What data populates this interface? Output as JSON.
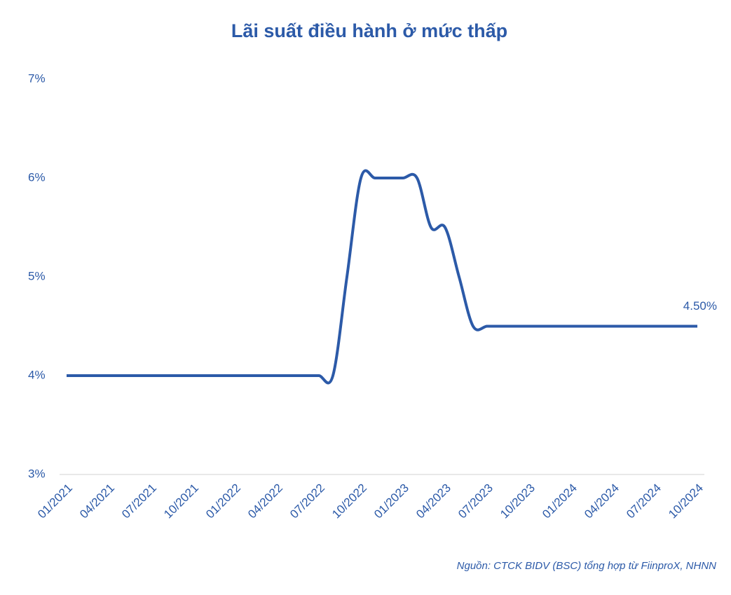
{
  "chart_data": {
    "type": "line",
    "title": "Lãi suất điều hành ở mức thấp",
    "source": "Nguồn: CTCK BIDV (BSC) tổng hợp từ FiinproX, NHNN",
    "categories": [
      "01/2021",
      null,
      null,
      "04/2021",
      null,
      null,
      "07/2021",
      null,
      null,
      "10/2021",
      null,
      null,
      "01/2022",
      null,
      null,
      "04/2022",
      null,
      null,
      "07/2022",
      null,
      null,
      "10/2022",
      null,
      null,
      "01/2023",
      null,
      null,
      "04/2023",
      null,
      null,
      "07/2023",
      null,
      null,
      "10/2023",
      null,
      null,
      "01/2024",
      null,
      null,
      "04/2024",
      null,
      null,
      "07/2024",
      null,
      null,
      "10/2024"
    ],
    "values": [
      4,
      4,
      4,
      4,
      4,
      4,
      4,
      4,
      4,
      4,
      4,
      4,
      4,
      4,
      4,
      4,
      4,
      4,
      4,
      4,
      5,
      6,
      6,
      6,
      6,
      6,
      5.5,
      5.5,
      5,
      4.5,
      4.5,
      4.5,
      4.5,
      4.5,
      4.5,
      4.5,
      4.5,
      4.5,
      4.5,
      4.5,
      4.5,
      4.5,
      4.5,
      4.5,
      4.5,
      4.5
    ],
    "value_labels": [
      null,
      null,
      null,
      null,
      null,
      null,
      null,
      null,
      null,
      null,
      null,
      null,
      null,
      null,
      null,
      null,
      null,
      null,
      null,
      null,
      null,
      null,
      null,
      null,
      null,
      null,
      null,
      null,
      null,
      null,
      null,
      null,
      null,
      null,
      null,
      null,
      null,
      null,
      null,
      null,
      null,
      null,
      null,
      null,
      null,
      "4.50%"
    ],
    "color": "#2c5aa8",
    "ylim": [
      3,
      7
    ],
    "yticks": [
      {
        "value": 3,
        "label": "3%"
      },
      {
        "value": 4,
        "label": "4%"
      },
      {
        "value": 5,
        "label": "5%"
      },
      {
        "value": 6,
        "label": "6%"
      },
      {
        "value": 7,
        "label": "7%"
      }
    ],
    "grid": false
  }
}
